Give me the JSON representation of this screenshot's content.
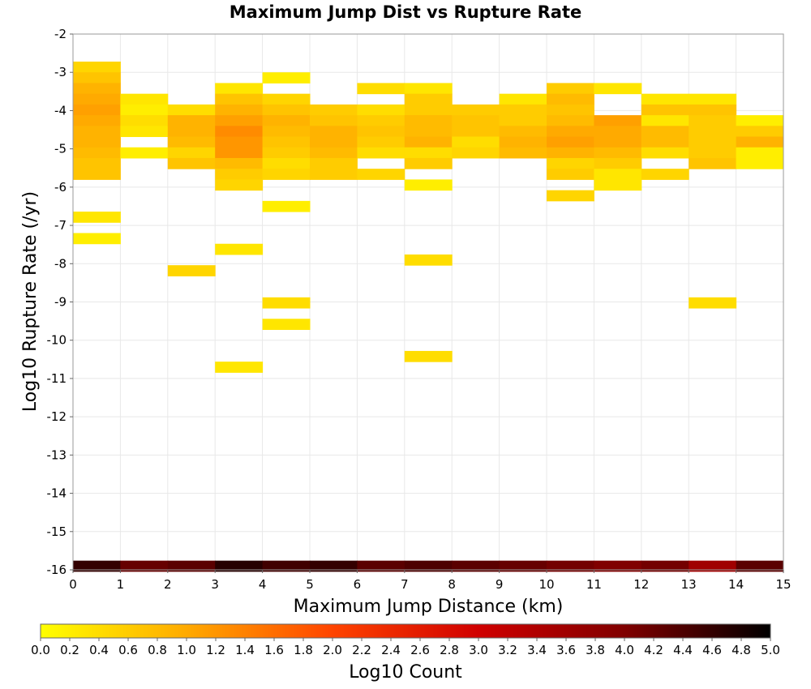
{
  "chart_data": {
    "type": "heatmap",
    "title": "Maximum Jump Dist vs Rupture Rate",
    "xlabel": "Maximum Jump Distance (km)",
    "ylabel": "Log10 Rupture Rate (/yr)",
    "xlim": [
      0,
      15
    ],
    "ylim": [
      -16,
      -2
    ],
    "xticks": [
      "0",
      "1",
      "2",
      "3",
      "4",
      "5",
      "6",
      "7",
      "8",
      "9",
      "10",
      "11",
      "12",
      "13",
      "14",
      "15"
    ],
    "yticks": [
      "-2",
      "-3",
      "-4",
      "-5",
      "-6",
      "-7",
      "-8",
      "-9",
      "-10",
      "-11",
      "-12",
      "-13",
      "-14",
      "-15",
      "-16"
    ],
    "x_bin_width": 1,
    "y_bin_height": 0.28,
    "grid": true,
    "colorscale": {
      "label": "Log10 Count",
      "min": 0.0,
      "max": 5.0,
      "ticks": [
        "0.0",
        "0.2",
        "0.4",
        "0.6",
        "0.8",
        "1.0",
        "1.2",
        "1.4",
        "1.6",
        "1.8",
        "2.0",
        "2.2",
        "2.4",
        "2.6",
        "2.8",
        "3.0",
        "3.2",
        "3.4",
        "3.6",
        "3.8",
        "4.0",
        "4.2",
        "4.4",
        "4.6",
        "4.8",
        "5.0"
      ],
      "colors": [
        "#ffff00",
        "#ffaa00",
        "#ff4400",
        "#d00000",
        "#800000",
        "#000000"
      ]
    },
    "cells": [
      {
        "x": 0,
        "y": -2.86,
        "v": 0.5
      },
      {
        "x": 0,
        "y": -3.14,
        "v": 0.7
      },
      {
        "x": 0,
        "y": -3.42,
        "v": 0.9
      },
      {
        "x": 0,
        "y": -3.7,
        "v": 1.0
      },
      {
        "x": 0,
        "y": -3.98,
        "v": 1.1
      },
      {
        "x": 0,
        "y": -4.26,
        "v": 1.0
      },
      {
        "x": 0,
        "y": -4.54,
        "v": 0.9
      },
      {
        "x": 0,
        "y": -4.82,
        "v": 0.9
      },
      {
        "x": 0,
        "y": -5.1,
        "v": 0.8
      },
      {
        "x": 0,
        "y": -5.38,
        "v": 0.7
      },
      {
        "x": 0,
        "y": -5.66,
        "v": 0.7
      },
      {
        "x": 0,
        "y": -6.78,
        "v": 0.3
      },
      {
        "x": 0,
        "y": -7.34,
        "v": 0.2
      },
      {
        "x": 0,
        "y": -15.9,
        "v": 4.6
      },
      {
        "x": 1,
        "y": -3.7,
        "v": 0.3
      },
      {
        "x": 1,
        "y": -3.98,
        "v": 0.2
      },
      {
        "x": 1,
        "y": -4.26,
        "v": 0.4
      },
      {
        "x": 1,
        "y": -4.54,
        "v": 0.3
      },
      {
        "x": 1,
        "y": -5.1,
        "v": 0.2
      },
      {
        "x": 1,
        "y": -15.9,
        "v": 4.2
      },
      {
        "x": 2,
        "y": -3.98,
        "v": 0.4
      },
      {
        "x": 2,
        "y": -4.26,
        "v": 0.9
      },
      {
        "x": 2,
        "y": -4.54,
        "v": 0.9
      },
      {
        "x": 2,
        "y": -4.82,
        "v": 0.8
      },
      {
        "x": 2,
        "y": -5.1,
        "v": 0.5
      },
      {
        "x": 2,
        "y": -5.38,
        "v": 0.7
      },
      {
        "x": 2,
        "y": -8.18,
        "v": 0.5
      },
      {
        "x": 2,
        "y": -15.9,
        "v": 4.3
      },
      {
        "x": 3,
        "y": -3.42,
        "v": 0.3
      },
      {
        "x": 3,
        "y": -3.7,
        "v": 0.7
      },
      {
        "x": 3,
        "y": -3.98,
        "v": 0.9
      },
      {
        "x": 3,
        "y": -4.26,
        "v": 1.1
      },
      {
        "x": 3,
        "y": -4.54,
        "v": 1.3
      },
      {
        "x": 3,
        "y": -4.82,
        "v": 1.2
      },
      {
        "x": 3,
        "y": -5.1,
        "v": 1.2
      },
      {
        "x": 3,
        "y": -5.38,
        "v": 0.8
      },
      {
        "x": 3,
        "y": -5.66,
        "v": 0.6
      },
      {
        "x": 3,
        "y": -5.94,
        "v": 0.5
      },
      {
        "x": 3,
        "y": -7.62,
        "v": 0.3
      },
      {
        "x": 3,
        "y": -10.7,
        "v": 0.3
      },
      {
        "x": 3,
        "y": -15.9,
        "v": 4.7
      },
      {
        "x": 4,
        "y": -3.14,
        "v": 0.2
      },
      {
        "x": 4,
        "y": -3.7,
        "v": 0.5
      },
      {
        "x": 4,
        "y": -3.98,
        "v": 0.7
      },
      {
        "x": 4,
        "y": -4.26,
        "v": 0.9
      },
      {
        "x": 4,
        "y": -4.54,
        "v": 0.8
      },
      {
        "x": 4,
        "y": -4.82,
        "v": 0.7
      },
      {
        "x": 4,
        "y": -5.1,
        "v": 0.6
      },
      {
        "x": 4,
        "y": -5.38,
        "v": 0.4
      },
      {
        "x": 4,
        "y": -5.66,
        "v": 0.5
      },
      {
        "x": 4,
        "y": -6.5,
        "v": 0.2
      },
      {
        "x": 4,
        "y": -9.02,
        "v": 0.4
      },
      {
        "x": 4,
        "y": -9.58,
        "v": 0.3
      },
      {
        "x": 4,
        "y": -15.9,
        "v": 4.5
      },
      {
        "x": 5,
        "y": -3.98,
        "v": 0.6
      },
      {
        "x": 5,
        "y": -4.26,
        "v": 0.7
      },
      {
        "x": 5,
        "y": -4.54,
        "v": 0.9
      },
      {
        "x": 5,
        "y": -4.82,
        "v": 0.9
      },
      {
        "x": 5,
        "y": -5.1,
        "v": 0.8
      },
      {
        "x": 5,
        "y": -5.38,
        "v": 0.6
      },
      {
        "x": 5,
        "y": -5.66,
        "v": 0.6
      },
      {
        "x": 5,
        "y": -15.9,
        "v": 4.6
      },
      {
        "x": 6,
        "y": -3.42,
        "v": 0.4
      },
      {
        "x": 6,
        "y": -3.98,
        "v": 0.4
      },
      {
        "x": 6,
        "y": -4.26,
        "v": 0.6
      },
      {
        "x": 6,
        "y": -4.54,
        "v": 0.7
      },
      {
        "x": 6,
        "y": -4.82,
        "v": 0.6
      },
      {
        "x": 6,
        "y": -5.1,
        "v": 0.4
      },
      {
        "x": 6,
        "y": -5.66,
        "v": 0.5
      },
      {
        "x": 6,
        "y": -15.9,
        "v": 4.3
      },
      {
        "x": 7,
        "y": -3.42,
        "v": 0.3
      },
      {
        "x": 7,
        "y": -3.7,
        "v": 0.6
      },
      {
        "x": 7,
        "y": -3.98,
        "v": 0.6
      },
      {
        "x": 7,
        "y": -4.26,
        "v": 0.8
      },
      {
        "x": 7,
        "y": -4.54,
        "v": 0.8
      },
      {
        "x": 7,
        "y": -4.82,
        "v": 0.9
      },
      {
        "x": 7,
        "y": -5.1,
        "v": 0.4
      },
      {
        "x": 7,
        "y": -5.38,
        "v": 0.6
      },
      {
        "x": 7,
        "y": -5.94,
        "v": 0.2
      },
      {
        "x": 7,
        "y": -7.9,
        "v": 0.4
      },
      {
        "x": 7,
        "y": -10.42,
        "v": 0.4
      },
      {
        "x": 7,
        "y": -15.9,
        "v": 4.4
      },
      {
        "x": 8,
        "y": -3.98,
        "v": 0.6
      },
      {
        "x": 8,
        "y": -4.26,
        "v": 0.7
      },
      {
        "x": 8,
        "y": -4.54,
        "v": 0.7
      },
      {
        "x": 8,
        "y": -4.82,
        "v": 0.4
      },
      {
        "x": 8,
        "y": -5.1,
        "v": 0.5
      },
      {
        "x": 8,
        "y": -15.9,
        "v": 4.3
      },
      {
        "x": 9,
        "y": -3.7,
        "v": 0.3
      },
      {
        "x": 9,
        "y": -3.98,
        "v": 0.6
      },
      {
        "x": 9,
        "y": -4.26,
        "v": 0.6
      },
      {
        "x": 9,
        "y": -4.54,
        "v": 0.8
      },
      {
        "x": 9,
        "y": -4.82,
        "v": 0.9
      },
      {
        "x": 9,
        "y": -5.1,
        "v": 0.8
      },
      {
        "x": 9,
        "y": -15.9,
        "v": 4.2
      },
      {
        "x": 10,
        "y": -3.42,
        "v": 0.6
      },
      {
        "x": 10,
        "y": -3.7,
        "v": 0.8
      },
      {
        "x": 10,
        "y": -3.98,
        "v": 0.7
      },
      {
        "x": 10,
        "y": -4.26,
        "v": 0.8
      },
      {
        "x": 10,
        "y": -4.54,
        "v": 1.0
      },
      {
        "x": 10,
        "y": -4.82,
        "v": 1.1
      },
      {
        "x": 10,
        "y": -5.1,
        "v": 0.9
      },
      {
        "x": 10,
        "y": -5.38,
        "v": 0.5
      },
      {
        "x": 10,
        "y": -5.66,
        "v": 0.6
      },
      {
        "x": 10,
        "y": -6.22,
        "v": 0.5
      },
      {
        "x": 10,
        "y": -15.9,
        "v": 4.1
      },
      {
        "x": 11,
        "y": -3.42,
        "v": 0.3
      },
      {
        "x": 11,
        "y": -4.26,
        "v": 1.1
      },
      {
        "x": 11,
        "y": -4.54,
        "v": 1.0
      },
      {
        "x": 11,
        "y": -4.82,
        "v": 1.0
      },
      {
        "x": 11,
        "y": -5.1,
        "v": 0.8
      },
      {
        "x": 11,
        "y": -5.38,
        "v": 0.6
      },
      {
        "x": 11,
        "y": -5.66,
        "v": 0.3
      },
      {
        "x": 11,
        "y": -5.94,
        "v": 0.3
      },
      {
        "x": 11,
        "y": -15.9,
        "v": 4.0
      },
      {
        "x": 12,
        "y": -3.7,
        "v": 0.3
      },
      {
        "x": 12,
        "y": -3.98,
        "v": 0.7
      },
      {
        "x": 12,
        "y": -4.26,
        "v": 0.3
      },
      {
        "x": 12,
        "y": -4.54,
        "v": 0.8
      },
      {
        "x": 12,
        "y": -4.82,
        "v": 0.8
      },
      {
        "x": 12,
        "y": -5.1,
        "v": 0.4
      },
      {
        "x": 12,
        "y": -5.66,
        "v": 0.5
      },
      {
        "x": 12,
        "y": -15.9,
        "v": 4.1
      },
      {
        "x": 13,
        "y": -3.7,
        "v": 0.3
      },
      {
        "x": 13,
        "y": -3.98,
        "v": 0.7
      },
      {
        "x": 13,
        "y": -4.26,
        "v": 0.6
      },
      {
        "x": 13,
        "y": -4.54,
        "v": 0.6
      },
      {
        "x": 13,
        "y": -4.82,
        "v": 0.6
      },
      {
        "x": 13,
        "y": -5.1,
        "v": 0.6
      },
      {
        "x": 13,
        "y": -5.38,
        "v": 0.7
      },
      {
        "x": 13,
        "y": -9.02,
        "v": 0.4
      },
      {
        "x": 13,
        "y": -15.9,
        "v": 3.6
      },
      {
        "x": 14,
        "y": -4.26,
        "v": 0.2
      },
      {
        "x": 14,
        "y": -4.54,
        "v": 0.6
      },
      {
        "x": 14,
        "y": -4.82,
        "v": 0.9
      },
      {
        "x": 14,
        "y": -5.1,
        "v": 0.2
      },
      {
        "x": 14,
        "y": -5.38,
        "v": 0.2
      },
      {
        "x": 14,
        "y": -15.9,
        "v": 4.3
      }
    ]
  }
}
